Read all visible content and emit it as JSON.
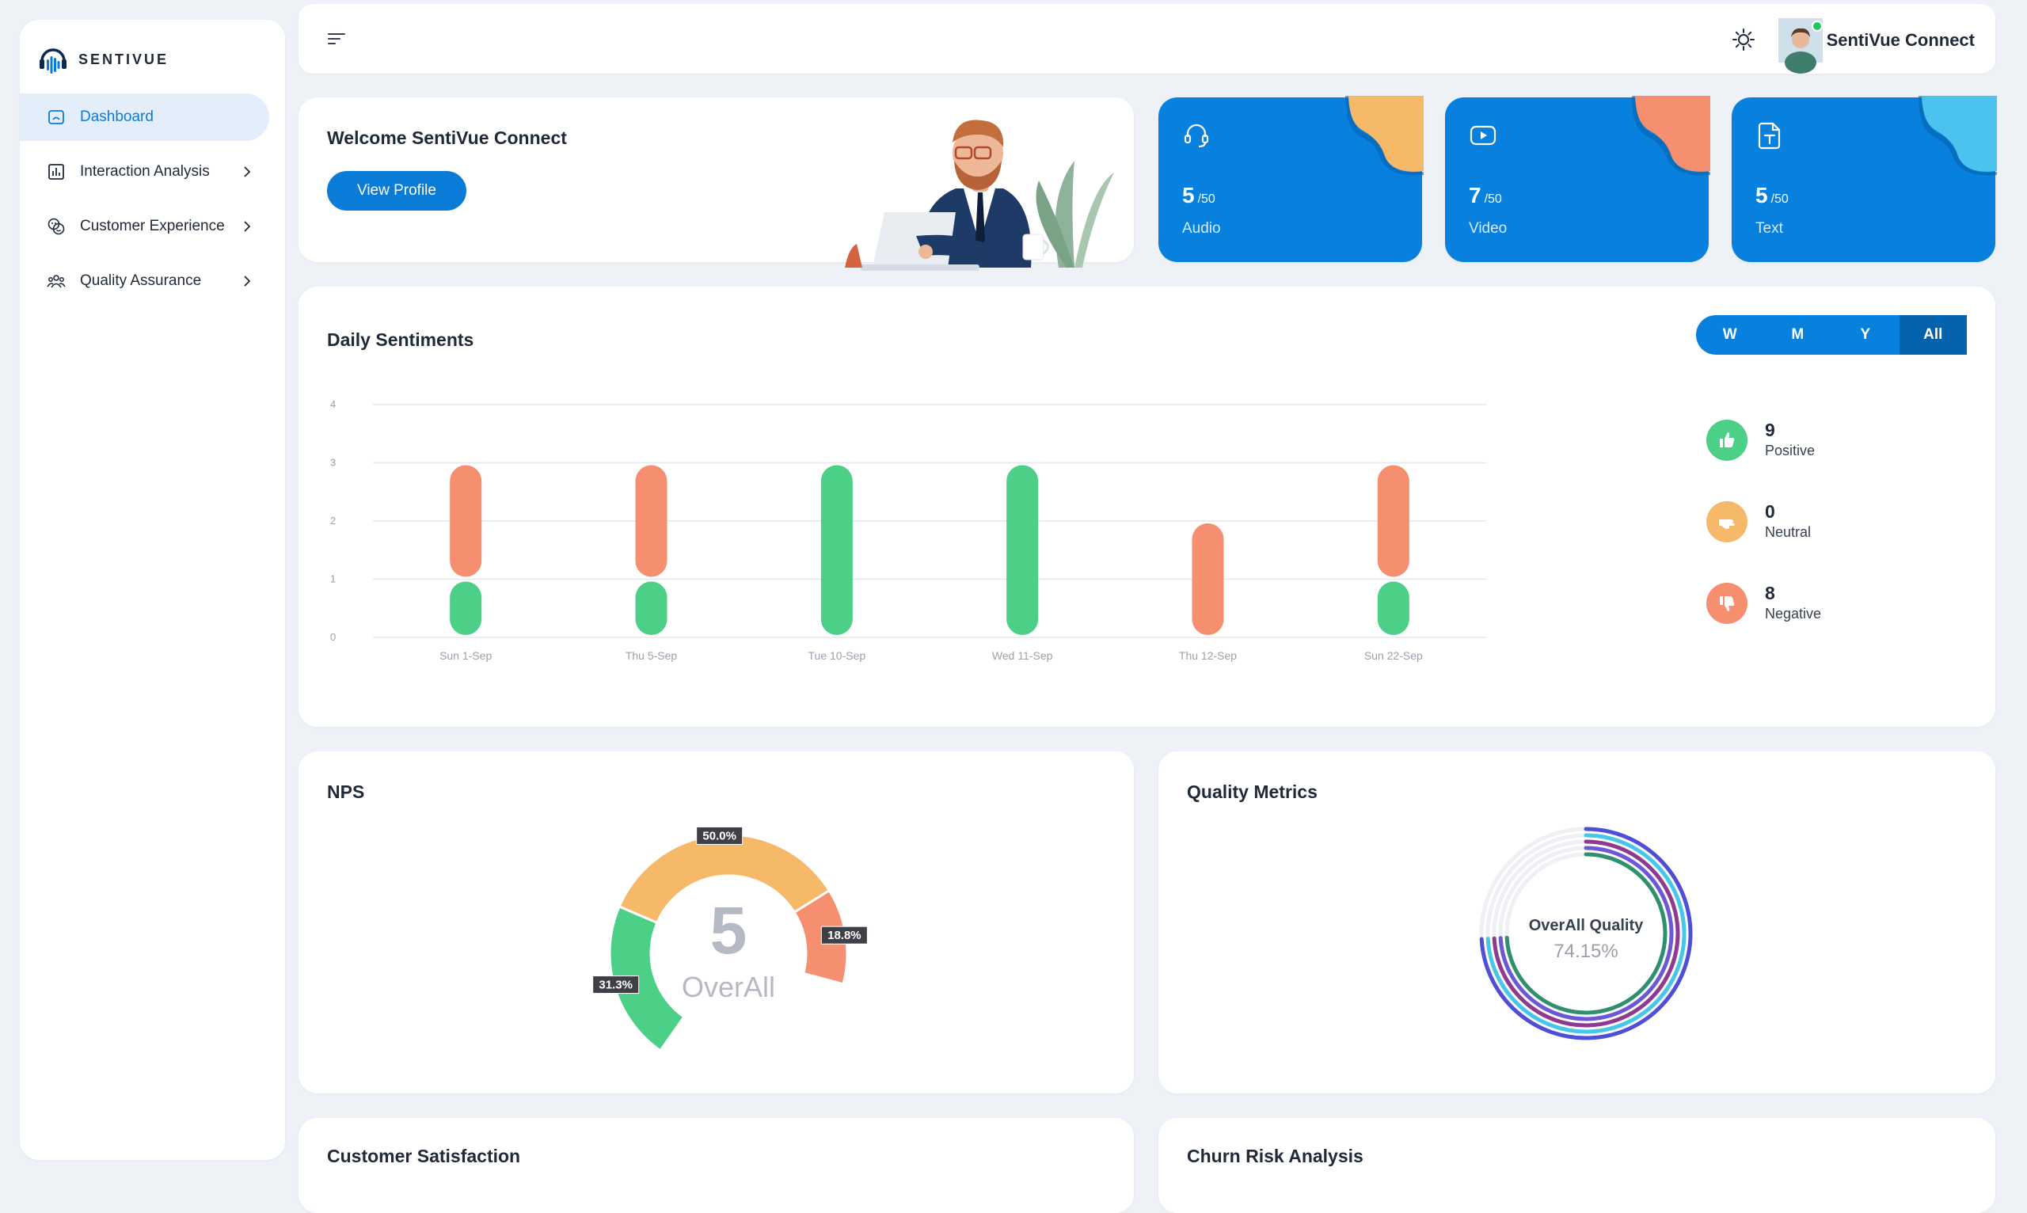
{
  "brand": {
    "name": "SENTIVUE"
  },
  "sidebar": {
    "items": [
      {
        "label": "Dashboard",
        "icon": "dashboard-icon",
        "active": true
      },
      {
        "label": "Interaction Analysis",
        "icon": "bar-chart-icon",
        "active": false
      },
      {
        "label": "Customer Experience",
        "icon": "emoji-icon",
        "active": false
      },
      {
        "label": "Quality Assurance",
        "icon": "team-icon",
        "active": false
      }
    ]
  },
  "topbar": {
    "user_name": "SentiVue Connect"
  },
  "welcome": {
    "title": "Welcome SentiVue Connect",
    "button": "View Profile"
  },
  "stats": [
    {
      "value": "5",
      "of": "/50",
      "label": "Audio",
      "icon": "headset-icon",
      "blob_color": "#f6b96a"
    },
    {
      "value": "7",
      "of": "/50",
      "label": "Video",
      "icon": "video-icon",
      "blob_color": "#f58f6f"
    },
    {
      "value": "5",
      "of": "/50",
      "label": "Text",
      "icon": "text-file-icon",
      "blob_color": "#4cc3ef"
    }
  ],
  "sentiments": {
    "title": "Daily Sentiments",
    "periods": [
      "W",
      "M",
      "Y",
      "All"
    ],
    "active_period": "All",
    "legend": [
      {
        "count": "9",
        "label": "Positive",
        "color": "#4ccf87",
        "icon": "thumbs-up-icon"
      },
      {
        "count": "0",
        "label": "Neutral",
        "color": "#f6b96a",
        "icon": "neutral-hand-icon"
      },
      {
        "count": "8",
        "label": "Negative",
        "color": "#f58f6f",
        "icon": "thumbs-down-icon"
      }
    ]
  },
  "chart_data": [
    {
      "type": "bar",
      "stacked": true,
      "categories": [
        "Sun 1-Sep",
        "Thu 5-Sep",
        "Tue 10-Sep",
        "Wed 11-Sep",
        "Thu 12-Sep",
        "Sun 22-Sep"
      ],
      "series": [
        {
          "name": "Positive",
          "color": "#4ccf87",
          "values": [
            1,
            1,
            3,
            3,
            0,
            1
          ]
        },
        {
          "name": "Negative",
          "color": "#f58f6f",
          "values": [
            2,
            2,
            0,
            0,
            2,
            2
          ]
        }
      ],
      "yticks": [
        0,
        1,
        2,
        3,
        4
      ],
      "ylim": [
        0,
        4
      ],
      "grid": true
    },
    {
      "type": "pie",
      "title": "NPS",
      "center_value": "5",
      "center_label": "OverAll",
      "slices": [
        {
          "label": "31.3%",
          "value": 31.3,
          "color": "#4ccf87"
        },
        {
          "label": "50.0%",
          "value": 50.0,
          "color": "#f6b96a"
        },
        {
          "label": "18.8%",
          "value": 18.8,
          "color": "#f58f6f"
        }
      ]
    },
    {
      "type": "radial",
      "title": "Quality Metrics",
      "center_title": "OverAll Quality",
      "center_value": "74.15%",
      "rings": [
        {
          "value": 74.15,
          "color": "#4f4fd6"
        },
        {
          "value": 74.15,
          "color": "#48c6e8"
        },
        {
          "value": 74.15,
          "color": "#8f3a8f"
        },
        {
          "value": 74.15,
          "color": "#6c58d6"
        },
        {
          "value": 74.15,
          "color": "#2f8f6f"
        }
      ]
    }
  ],
  "nps": {
    "title": "NPS"
  },
  "quality": {
    "title": "Quality Metrics"
  },
  "customer_satisfaction": {
    "title": "Customer Satisfaction"
  },
  "churn": {
    "title": "Churn Risk Analysis"
  }
}
